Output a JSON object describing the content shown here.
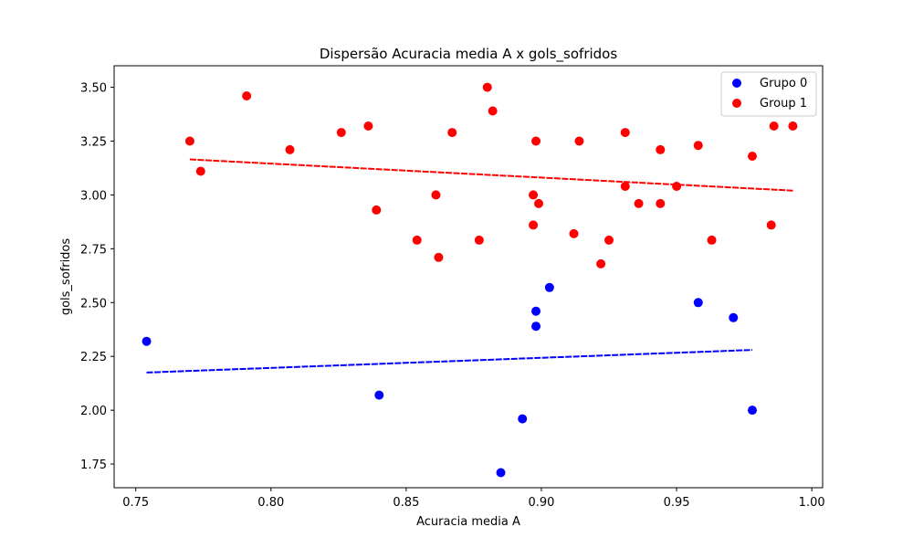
{
  "chart_data": {
    "type": "scatter",
    "title": "Dispersão Acuracia media A x gols_sofridos",
    "xlabel": "Acuracia media A",
    "ylabel": "gols_sofridos",
    "xlim": [
      0.742,
      1.004
    ],
    "ylim": [
      1.64,
      3.6
    ],
    "xticks": [
      0.75,
      0.8,
      0.85,
      0.9,
      0.95,
      1.0
    ],
    "xtick_labels": [
      "0.75",
      "0.80",
      "0.85",
      "0.90",
      "0.95",
      "1.00"
    ],
    "yticks": [
      1.75,
      2.0,
      2.25,
      2.5,
      2.75,
      3.0,
      3.25,
      3.5
    ],
    "ytick_labels": [
      "1.75",
      "2.00",
      "2.25",
      "2.50",
      "2.75",
      "3.00",
      "3.25",
      "3.50"
    ],
    "grid": false,
    "legend_position": "top-right",
    "series": [
      {
        "name": "Grupo 0",
        "color": "#0000ff",
        "x": [
          0.754,
          0.84,
          0.885,
          0.893,
          0.898,
          0.898,
          0.903,
          0.958,
          0.971,
          0.978
        ],
        "y": [
          2.32,
          2.07,
          1.71,
          1.96,
          2.46,
          2.39,
          2.57,
          2.5,
          2.43,
          2.0
        ],
        "trendline": {
          "x": [
            0.754,
            0.978
          ],
          "y": [
            2.175,
            2.28
          ]
        }
      },
      {
        "name": "Group 1",
        "color": "#ff0000",
        "x": [
          0.77,
          0.774,
          0.791,
          0.807,
          0.826,
          0.836,
          0.839,
          0.854,
          0.861,
          0.862,
          0.867,
          0.877,
          0.88,
          0.882,
          0.897,
          0.897,
          0.898,
          0.899,
          0.912,
          0.914,
          0.922,
          0.925,
          0.931,
          0.931,
          0.936,
          0.944,
          0.944,
          0.95,
          0.958,
          0.963,
          0.978,
          0.985,
          0.986,
          0.993
        ],
        "y": [
          3.25,
          3.11,
          3.46,
          3.21,
          3.29,
          3.32,
          2.93,
          2.79,
          3.0,
          2.71,
          3.29,
          2.79,
          3.5,
          3.39,
          2.86,
          3.0,
          3.25,
          2.96,
          2.82,
          3.25,
          2.68,
          2.79,
          3.29,
          3.04,
          2.96,
          3.21,
          2.96,
          3.04,
          3.23,
          2.79,
          3.18,
          2.86,
          3.32,
          3.32
        ],
        "trendline": {
          "x": [
            0.77,
            0.993
          ],
          "y": [
            3.165,
            3.02
          ]
        }
      }
    ]
  }
}
